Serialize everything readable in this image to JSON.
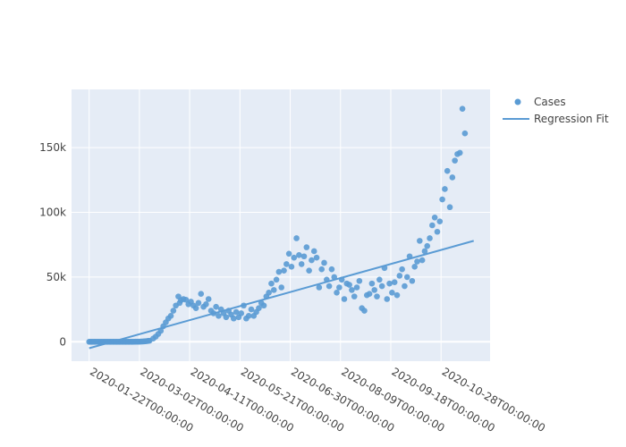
{
  "chart_data": {
    "type": "scatter",
    "title": "",
    "xlabel": "",
    "ylabel": "",
    "x_start": "2020-01-22",
    "xlim": [
      "2020-01-08",
      "2020-12-06"
    ],
    "ylim": [
      -15000,
      195000
    ],
    "yticks": [
      0,
      50000,
      100000,
      150000
    ],
    "ytick_labels": [
      "0",
      "50k",
      "100k",
      "150k"
    ],
    "xticks": [
      "2020-01-22",
      "2020-03-02",
      "2020-04-11",
      "2020-05-21",
      "2020-06-30",
      "2020-08-09",
      "2020-09-18",
      "2020-10-28"
    ],
    "xtick_labels": [
      "2020-01-22T00:00:00",
      "2020-03-02T00:00:00",
      "2020-04-11T00:00:00",
      "2020-05-21T00:00:00",
      "2020-06-30T00:00:00",
      "2020-08-09T00:00:00",
      "2020-09-18T00:00:00",
      "2020-10-28T00:00:00"
    ],
    "grid": true,
    "legend_position": "top-right",
    "colors": {
      "points": "#5a9bd4",
      "line": "#5a9bd4",
      "plot_bg": "#e5ecf6",
      "grid": "#ffffff"
    },
    "series": [
      {
        "name": "Cases",
        "mode": "markers",
        "values": [
          0,
          0,
          0,
          0,
          0,
          0,
          0,
          0,
          0,
          0,
          0,
          0,
          0,
          0,
          0,
          0,
          0,
          0,
          0,
          0,
          0,
          0,
          0,
          0,
          0,
          0,
          0,
          0,
          0,
          0,
          0,
          0,
          0,
          0,
          0,
          0,
          0,
          0,
          0,
          0,
          0,
          0,
          0,
          0,
          0,
          0,
          0,
          0,
          0,
          0,
          0,
          0,
          0,
          0,
          0,
          0,
          0,
          0,
          0,
          0,
          0,
          0,
          0,
          0,
          0,
          0,
          0,
          0,
          0,
          0,
          0,
          0,
          0,
          0,
          0,
          0,
          0,
          0,
          0,
          0,
          0,
          0,
          0,
          0,
          0,
          0,
          0,
          0,
          0,
          0,
          0,
          0,
          0,
          0,
          0,
          0,
          0,
          0,
          0,
          0,
          0,
          0,
          0,
          0,
          0,
          0,
          0,
          0,
          0,
          0,
          0,
          0,
          0,
          0,
          0,
          0,
          0,
          0,
          0,
          0,
          0,
          0,
          0,
          0,
          0,
          0,
          0,
          0,
          0,
          0,
          0,
          0,
          0,
          0,
          0,
          0,
          0,
          0,
          0,
          0,
          0,
          0,
          0,
          0,
          0,
          0,
          0,
          0,
          0,
          0,
          0,
          0,
          0,
          0,
          0,
          0,
          0,
          0,
          0,
          0,
          0,
          0,
          0,
          0,
          0,
          0,
          0,
          0,
          0,
          0,
          0,
          0,
          0,
          0,
          0,
          0,
          0,
          0,
          0,
          0,
          0,
          0,
          0,
          0,
          0,
          0,
          0,
          0,
          0,
          0,
          0,
          0,
          0,
          0,
          0,
          0,
          0,
          0,
          0,
          0,
          0,
          0,
          0,
          0,
          0,
          0,
          0,
          0,
          0,
          0,
          0,
          0,
          0,
          0,
          0,
          0,
          0,
          0,
          0,
          0,
          0,
          0,
          0,
          0,
          0,
          0,
          0,
          0,
          0,
          0,
          0,
          0,
          0,
          0,
          0,
          0,
          0,
          0,
          0,
          0,
          0,
          0,
          0,
          0,
          0,
          0,
          0,
          0,
          0,
          0,
          0,
          0,
          0,
          0,
          0,
          0,
          0,
          0,
          0,
          0,
          0,
          0,
          0,
          0,
          0,
          0,
          0,
          0,
          0,
          0,
          0,
          0,
          0,
          0,
          0,
          0,
          0,
          0,
          0,
          0,
          0,
          0,
          0,
          0,
          0,
          0,
          0,
          0,
          0,
          0,
          0,
          0,
          0,
          0,
          0,
          0,
          0,
          0,
          0,
          0,
          0,
          0,
          0,
          0,
          0,
          0,
          0,
          0,
          0,
          0,
          0,
          0,
          0,
          0,
          0,
          0,
          0,
          0,
          0,
          0,
          0,
          0,
          0,
          0,
          0,
          0,
          0,
          0,
          0,
          0,
          0,
          0,
          0,
          0,
          0,
          0,
          0,
          0,
          0,
          0,
          0,
          0,
          0,
          0,
          0,
          0,
          0,
          0,
          0,
          0,
          0,
          0,
          0,
          0,
          0,
          0,
          0,
          0,
          0,
          0,
          0,
          0,
          0,
          0,
          0,
          0
        ]
      },
      {
        "name": "Regression Fit",
        "mode": "lines",
        "x": [
          "2020-01-22",
          "2020-11-23"
        ],
        "values": [
          -5000,
          78000
        ]
      }
    ],
    "cases_by_date": [
      [
        "2020-01-22",
        0
      ],
      [
        "2020-01-27",
        0
      ],
      [
        "2020-02-01",
        0
      ],
      [
        "2020-02-06",
        0
      ],
      [
        "2020-02-11",
        0
      ],
      [
        "2020-02-16",
        0
      ],
      [
        "2020-02-21",
        0
      ],
      [
        "2020-02-26",
        0
      ],
      [
        "2020-03-02",
        100
      ],
      [
        "2020-03-06",
        300
      ],
      [
        "2020-03-10",
        800
      ],
      [
        "2020-03-13",
        2500
      ],
      [
        "2020-03-15",
        4000
      ],
      [
        "2020-03-17",
        6000
      ],
      [
        "2020-03-19",
        8500
      ],
      [
        "2020-03-21",
        12000
      ],
      [
        "2020-03-23",
        15000
      ],
      [
        "2020-03-25",
        18000
      ],
      [
        "2020-03-27",
        20000
      ],
      [
        "2020-03-29",
        24000
      ],
      [
        "2020-03-31",
        28000
      ],
      [
        "2020-04-02",
        35000
      ],
      [
        "2020-04-03",
        30000
      ],
      [
        "2020-04-04",
        32000
      ],
      [
        "2020-04-06",
        33000
      ],
      [
        "2020-04-08",
        32500
      ],
      [
        "2020-04-10",
        29000
      ],
      [
        "2020-04-12",
        31000
      ],
      [
        "2020-04-14",
        28000
      ],
      [
        "2020-04-16",
        26000
      ],
      [
        "2020-04-18",
        30000
      ],
      [
        "2020-04-20",
        37000
      ],
      [
        "2020-04-22",
        27000
      ],
      [
        "2020-04-24",
        29000
      ],
      [
        "2020-04-26",
        33000
      ],
      [
        "2020-04-28",
        24000
      ],
      [
        "2020-04-30",
        22000
      ],
      [
        "2020-05-02",
        27000
      ],
      [
        "2020-05-04",
        20000
      ],
      [
        "2020-05-06",
        25000
      ],
      [
        "2020-05-08",
        22000
      ],
      [
        "2020-05-10",
        19000
      ],
      [
        "2020-05-12",
        24000
      ],
      [
        "2020-05-14",
        21000
      ],
      [
        "2020-05-16",
        18000
      ],
      [
        "2020-05-18",
        23000
      ],
      [
        "2020-05-20",
        19000
      ],
      [
        "2020-05-22",
        22000
      ],
      [
        "2020-05-24",
        28000
      ],
      [
        "2020-05-26",
        18000
      ],
      [
        "2020-05-28",
        20000
      ],
      [
        "2020-05-30",
        25000
      ],
      [
        "2020-06-01",
        20000
      ],
      [
        "2020-06-03",
        23000
      ],
      [
        "2020-06-05",
        26000
      ],
      [
        "2020-06-07",
        30000
      ],
      [
        "2020-06-09",
        28000
      ],
      [
        "2020-06-11",
        35000
      ],
      [
        "2020-06-13",
        38000
      ],
      [
        "2020-06-15",
        45000
      ],
      [
        "2020-06-17",
        40000
      ],
      [
        "2020-06-19",
        48000
      ],
      [
        "2020-06-21",
        54000
      ],
      [
        "2020-06-23",
        42000
      ],
      [
        "2020-06-25",
        55000
      ],
      [
        "2020-06-27",
        60000
      ],
      [
        "2020-06-29",
        68000
      ],
      [
        "2020-07-01",
        58000
      ],
      [
        "2020-07-03",
        65000
      ],
      [
        "2020-07-05",
        80000
      ],
      [
        "2020-07-07",
        67000
      ],
      [
        "2020-07-09",
        60000
      ],
      [
        "2020-07-11",
        66000
      ],
      [
        "2020-07-13",
        73000
      ],
      [
        "2020-07-15",
        55000
      ],
      [
        "2020-07-17",
        63000
      ],
      [
        "2020-07-19",
        70000
      ],
      [
        "2020-07-21",
        65000
      ],
      [
        "2020-07-23",
        42000
      ],
      [
        "2020-07-25",
        56000
      ],
      [
        "2020-07-27",
        61000
      ],
      [
        "2020-07-29",
        48000
      ],
      [
        "2020-07-31",
        43000
      ],
      [
        "2020-08-02",
        56000
      ],
      [
        "2020-08-04",
        50000
      ],
      [
        "2020-08-06",
        38000
      ],
      [
        "2020-08-08",
        42000
      ],
      [
        "2020-08-10",
        48000
      ],
      [
        "2020-08-12",
        33000
      ],
      [
        "2020-08-14",
        45000
      ],
      [
        "2020-08-16",
        44000
      ],
      [
        "2020-08-18",
        40000
      ],
      [
        "2020-08-20",
        35000
      ],
      [
        "2020-08-22",
        42000
      ],
      [
        "2020-08-24",
        47000
      ],
      [
        "2020-08-26",
        26000
      ],
      [
        "2020-08-28",
        24000
      ],
      [
        "2020-08-30",
        36000
      ],
      [
        "2020-09-01",
        37000
      ],
      [
        "2020-09-03",
        45000
      ],
      [
        "2020-09-05",
        40000
      ],
      [
        "2020-09-07",
        35000
      ],
      [
        "2020-09-09",
        48000
      ],
      [
        "2020-09-11",
        43000
      ],
      [
        "2020-09-13",
        57000
      ],
      [
        "2020-09-15",
        33000
      ],
      [
        "2020-09-17",
        45000
      ],
      [
        "2020-09-19",
        38000
      ],
      [
        "2020-09-21",
        46000
      ],
      [
        "2020-09-23",
        36000
      ],
      [
        "2020-09-25",
        51000
      ],
      [
        "2020-09-27",
        56000
      ],
      [
        "2020-09-29",
        43000
      ],
      [
        "2020-10-01",
        50000
      ],
      [
        "2020-10-03",
        66000
      ],
      [
        "2020-10-05",
        47000
      ],
      [
        "2020-10-07",
        58000
      ],
      [
        "2020-10-09",
        62000
      ],
      [
        "2020-10-11",
        78000
      ],
      [
        "2020-10-13",
        63000
      ],
      [
        "2020-10-15",
        70000
      ],
      [
        "2020-10-17",
        74000
      ],
      [
        "2020-10-19",
        80000
      ],
      [
        "2020-10-21",
        90000
      ],
      [
        "2020-10-23",
        96000
      ],
      [
        "2020-10-25",
        85000
      ],
      [
        "2020-10-27",
        93000
      ],
      [
        "2020-10-29",
        110000
      ],
      [
        "2020-10-31",
        118000
      ],
      [
        "2020-11-02",
        132000
      ],
      [
        "2020-11-04",
        104000
      ],
      [
        "2020-11-06",
        127000
      ],
      [
        "2020-11-08",
        140000
      ],
      [
        "2020-11-10",
        145000
      ],
      [
        "2020-11-12",
        146000
      ],
      [
        "2020-11-14",
        180000
      ],
      [
        "2020-11-16",
        161000
      ]
    ]
  }
}
